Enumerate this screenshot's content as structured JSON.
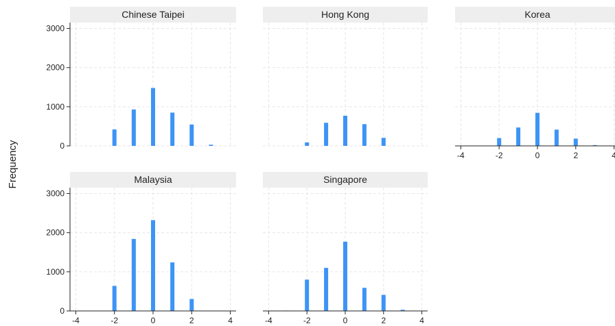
{
  "chart_data": {
    "type": "bar",
    "ylabel": "Frequency",
    "xlabel": "",
    "x_ticks": [
      -4,
      -2,
      0,
      2,
      4
    ],
    "y_ticks": [
      0,
      1000,
      2000,
      3000
    ],
    "xlim": [
      -4.3,
      4.3
    ],
    "ylim": [
      0,
      3150
    ],
    "grid": true,
    "bar_color": "#3d94f6",
    "panels": [
      {
        "name": "Chinese Taipei",
        "x": [
          -2,
          -1,
          0,
          1,
          2,
          3
        ],
        "values": [
          420,
          930,
          1480,
          850,
          545,
          30
        ]
      },
      {
        "name": "Hong Kong",
        "x": [
          -2,
          -1,
          0,
          1,
          2
        ],
        "values": [
          90,
          590,
          770,
          555,
          205
        ]
      },
      {
        "name": "Korea",
        "x": [
          -2,
          -1,
          0,
          1,
          2,
          3
        ],
        "values": [
          200,
          470,
          845,
          415,
          185,
          20
        ]
      },
      {
        "name": "Malaysia",
        "x": [
          -2,
          -1,
          0,
          1,
          2
        ],
        "values": [
          640,
          1840,
          2320,
          1240,
          305
        ]
      },
      {
        "name": "Singapore",
        "x": [
          -3,
          -2,
          -1,
          0,
          1,
          2,
          3
        ],
        "values": [
          10,
          800,
          1100,
          1770,
          590,
          410,
          30
        ]
      }
    ]
  }
}
